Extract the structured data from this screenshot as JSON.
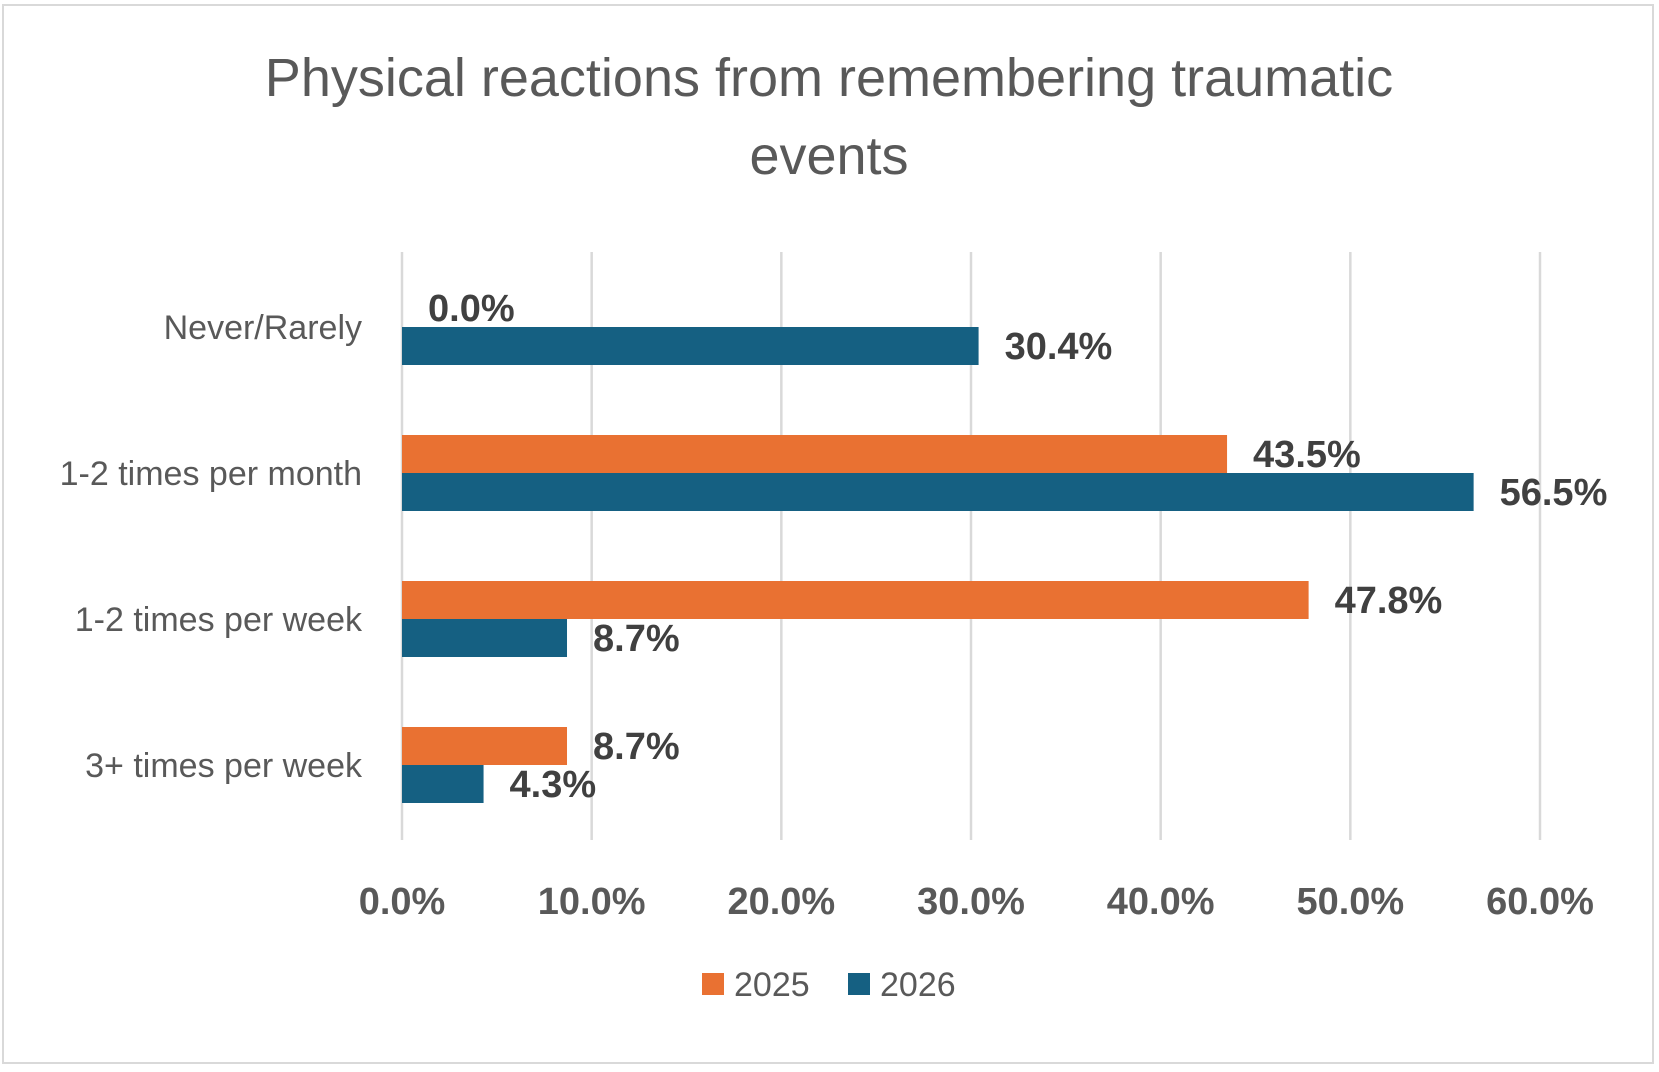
{
  "chart_data": {
    "type": "bar",
    "orientation": "horizontal",
    "title": "Physical reactions from remembering traumatic events",
    "title_lines": [
      "Physical reactions from remembering traumatic",
      "events"
    ],
    "categories": [
      "Never/Rarely",
      "1-2 times per month",
      "1-2 times per week",
      "3+ times per week"
    ],
    "series": [
      {
        "name": "2025",
        "color": "#E97132",
        "values": [
          0.0,
          43.5,
          47.8,
          8.7
        ],
        "labels": [
          "0.0%",
          "43.5%",
          "47.8%",
          "8.7%"
        ]
      },
      {
        "name": "2026",
        "color": "#156082",
        "values": [
          30.4,
          56.5,
          8.7,
          4.3
        ],
        "labels": [
          "30.4%",
          "56.5%",
          "8.7%",
          "4.3%"
        ]
      }
    ],
    "xlim": [
      0,
      60
    ],
    "x_ticks": [
      0,
      10,
      20,
      30,
      40,
      50,
      60
    ],
    "x_tick_labels": [
      "0.0%",
      "10.0%",
      "20.0%",
      "30.0%",
      "40.0%",
      "50.0%",
      "60.0%"
    ],
    "xlabel": "",
    "ylabel": "",
    "grid": true,
    "legend_position": "bottom"
  }
}
